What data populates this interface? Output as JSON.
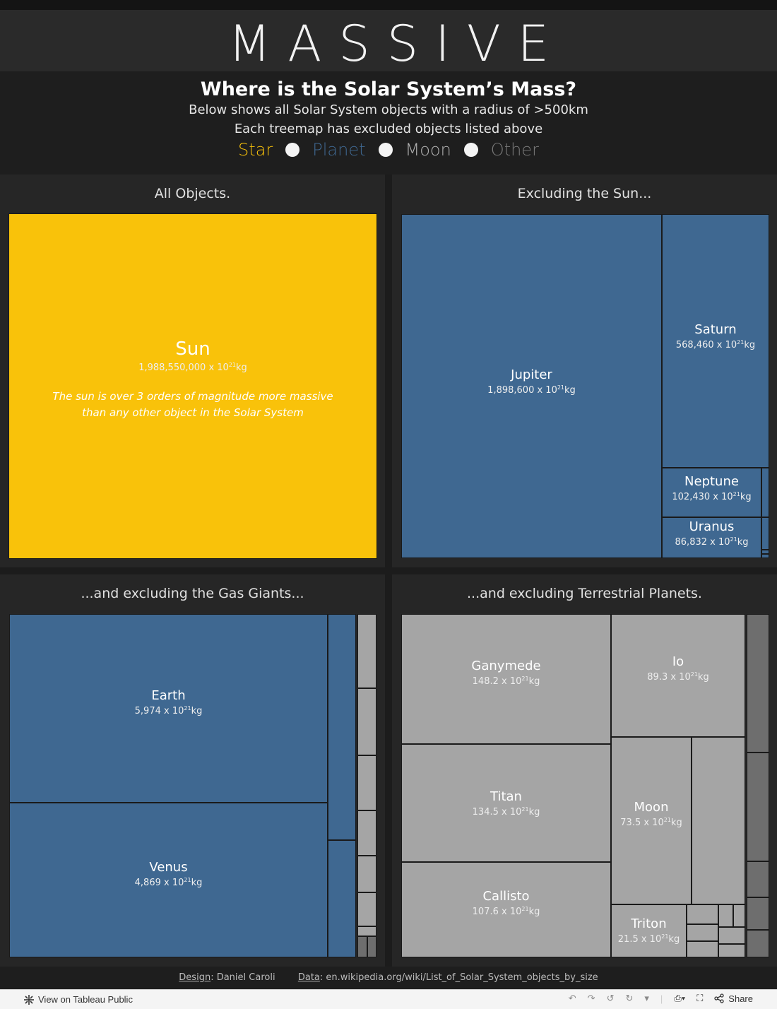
{
  "header": {
    "title": "MASSIVE",
    "question": "Where is the Solar System’s Mass?",
    "line1": "Below shows all Solar System objects with a radius of >500km",
    "line2": "Each treemap has excluded objects listed above"
  },
  "legend": [
    {
      "label": "Star",
      "color": "#F9C20A"
    },
    {
      "label": "Planet",
      "color": "#3F6891"
    },
    {
      "label": "Moon",
      "color": "#B2B2B2"
    },
    {
      "label": "Other",
      "color": "#7A7A7A"
    }
  ],
  "mass_unit_prefix": " x 10",
  "mass_unit_exp": "21",
  "mass_unit_suffix": "kg",
  "chart_data": [
    {
      "type": "treemap",
      "title": "All Objects.",
      "items": [
        {
          "name": "Sun",
          "mass": "1,988,550,000",
          "category": "Star",
          "note": "The sun is over 3 orders of magnitude more massive than any other object in the Solar System"
        }
      ]
    },
    {
      "type": "treemap",
      "title": "Excluding the Sun...",
      "items": [
        {
          "name": "Jupiter",
          "mass": "1,898,600",
          "category": "Planet"
        },
        {
          "name": "Saturn",
          "mass": "568,460",
          "category": "Planet"
        },
        {
          "name": "Neptune",
          "mass": "102,430",
          "category": "Planet"
        },
        {
          "name": "Uranus",
          "mass": "86,832",
          "category": "Planet"
        }
      ]
    },
    {
      "type": "treemap",
      "title": "...and excluding the Gas Giants...",
      "items": [
        {
          "name": "Earth",
          "mass": "5,974",
          "category": "Planet"
        },
        {
          "name": "Venus",
          "mass": "4,869",
          "category": "Planet"
        }
      ]
    },
    {
      "type": "treemap",
      "title": "...and excluding Terrestrial Planets.",
      "items": [
        {
          "name": "Ganymede",
          "mass": "148.2",
          "category": "Moon"
        },
        {
          "name": "Titan",
          "mass": "134.5",
          "category": "Moon"
        },
        {
          "name": "Callisto",
          "mass": "107.6",
          "category": "Moon"
        },
        {
          "name": "Io",
          "mass": "89.3",
          "category": "Moon"
        },
        {
          "name": "Moon",
          "mass": "73.5",
          "category": "Moon"
        },
        {
          "name": "Triton",
          "mass": "21.5",
          "category": "Moon"
        }
      ]
    }
  ],
  "footer": {
    "design_label": "Design",
    "design_value": ": Daniel Caroli",
    "data_label": "Data",
    "data_value": ": en.wikipedia.org/wiki/List_of_Solar_System_objects_by_size"
  },
  "toolbar": {
    "view_label": "View on Tableau Public",
    "share_label": "Share"
  }
}
